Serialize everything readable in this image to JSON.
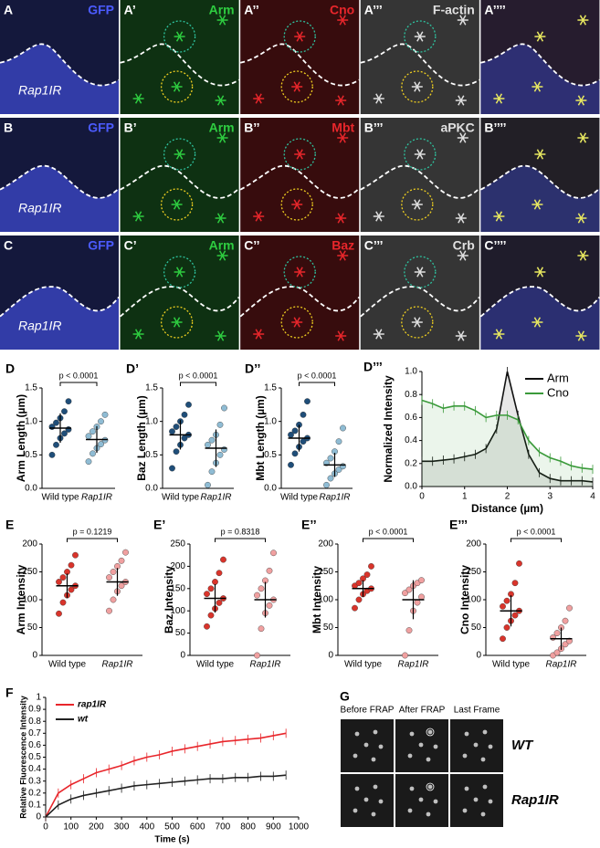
{
  "image_rows": [
    {
      "panels": [
        {
          "label": "A",
          "stain": "GFP",
          "color": "#4b5bff",
          "annotation": "Rap1IR"
        },
        {
          "label": "A’",
          "stain": "Arm",
          "color": "#2ecc40"
        },
        {
          "label": "A’’",
          "stain": "Cno",
          "color": "#e8262b"
        },
        {
          "label": "A’’’",
          "stain": "F-actin",
          "color": "#e0e0e0"
        },
        {
          "label": "A’’’’",
          "color": "#9a6cc0"
        }
      ]
    },
    {
      "panels": [
        {
          "label": "B",
          "stain": "GFP",
          "color": "#4b5bff",
          "annotation": "Rap1IR"
        },
        {
          "label": "B’",
          "stain": "Arm",
          "color": "#2ecc40"
        },
        {
          "label": "B’’",
          "stain": "Mbt",
          "color": "#e8262b"
        },
        {
          "label": "B’’’",
          "stain": "aPKC",
          "color": "#e0e0e0"
        },
        {
          "label": "B’’’’",
          "color": "#8a7c9a"
        }
      ]
    },
    {
      "panels": [
        {
          "label": "C",
          "stain": "GFP",
          "color": "#4b5bff",
          "annotation": "Rap1IR"
        },
        {
          "label": "C’",
          "stain": "Arm",
          "color": "#2ecc40"
        },
        {
          "label": "C’’",
          "stain": "Baz",
          "color": "#e8262b"
        },
        {
          "label": "C’’’",
          "stain": "Crb",
          "color": "#e0e0e0"
        },
        {
          "label": "C’’’’",
          "color": "#7a6cb0"
        }
      ]
    }
  ],
  "chart_data": [
    {
      "type": "dotplot",
      "panel": "D",
      "ylabel": "Arm Length (µm)",
      "categories": [
        "Wild type",
        "Rap1IR"
      ],
      "pvalue": "p < 0.0001",
      "ylim": [
        0,
        1.5
      ],
      "yticks": [
        {
          "value": 0,
          "label": "0.0"
        },
        0.5,
        {
          "value": 1,
          "label": "1.0"
        },
        1.5
      ],
      "groups": [
        {
          "color": "#1f4e79",
          "points": [
            0.5,
            0.65,
            0.75,
            0.82,
            0.88,
            0.92,
            0.98,
            1.05,
            1.15,
            1.3
          ],
          "mean": 0.9,
          "sd": 0.22
        },
        {
          "color": "#8fbcd4",
          "points": [
            0.4,
            0.52,
            0.6,
            0.66,
            0.72,
            0.78,
            0.85,
            0.92,
            1.0,
            1.1
          ],
          "mean": 0.73,
          "sd": 0.2
        }
      ]
    },
    {
      "type": "dotplot",
      "panel": "D’",
      "ylabel": "Baz Length (µm)",
      "categories": [
        "Wild type",
        "Rap1IR"
      ],
      "pvalue": "p < 0.0001",
      "ylim": [
        0,
        1.5
      ],
      "yticks": [
        {
          "value": 0,
          "label": "0.0"
        },
        0.5,
        {
          "value": 1,
          "label": "1.0"
        },
        1.5
      ],
      "groups": [
        {
          "color": "#1f4e79",
          "points": [
            0.3,
            0.55,
            0.65,
            0.75,
            0.8,
            0.85,
            0.92,
            1.0,
            1.1,
            1.25
          ],
          "mean": 0.8,
          "sd": 0.22
        },
        {
          "color": "#8fbcd4",
          "points": [
            0.05,
            0.25,
            0.38,
            0.5,
            0.58,
            0.65,
            0.72,
            0.8,
            0.95,
            1.2
          ],
          "mean": 0.6,
          "sd": 0.28
        }
      ]
    },
    {
      "type": "dotplot",
      "panel": "D’’",
      "ylabel": "Mbt Length (µm)",
      "categories": [
        "Wild type",
        "Rap1IR"
      ],
      "pvalue": "p < 0.0001",
      "ylim": [
        0,
        1.5
      ],
      "yticks": [
        {
          "value": 0,
          "label": "0.0"
        },
        0.5,
        {
          "value": 1,
          "label": "1.0"
        },
        1.5
      ],
      "groups": [
        {
          "color": "#1f4e79",
          "points": [
            0.35,
            0.52,
            0.62,
            0.7,
            0.75,
            0.8,
            0.86,
            0.95,
            1.1,
            1.3
          ],
          "mean": 0.75,
          "sd": 0.2
        },
        {
          "color": "#8fbcd4",
          "points": [
            0.05,
            0.15,
            0.22,
            0.28,
            0.33,
            0.38,
            0.45,
            0.55,
            0.7,
            0.9
          ],
          "mean": 0.35,
          "sd": 0.18
        }
      ]
    },
    {
      "type": "line",
      "panel": "D’’’",
      "ylabel": "Normalized Intensity",
      "xlabel": "Distance (µm)",
      "x": [
        0,
        0.25,
        0.5,
        0.75,
        1,
        1.25,
        1.5,
        1.75,
        2,
        2.25,
        2.5,
        2.75,
        3,
        3.25,
        3.5,
        3.75,
        4
      ],
      "xlim": [
        0,
        4
      ],
      "xticks": [
        0,
        1,
        2,
        3,
        4
      ],
      "ylim": [
        0,
        1
      ],
      "yticks": [
        {
          "value": 0,
          "label": "0.0"
        },
        0.2,
        0.4,
        0.6,
        0.8,
        {
          "value": 1,
          "label": "1.0"
        }
      ],
      "series": [
        {
          "name": "Arm",
          "color": "#111111",
          "values": [
            0.22,
            0.22,
            0.23,
            0.24,
            0.26,
            0.28,
            0.33,
            0.5,
            1.0,
            0.62,
            0.28,
            0.12,
            0.07,
            0.05,
            0.05,
            0.05,
            0.04
          ]
        },
        {
          "name": "Cno",
          "color": "#3a9a3a",
          "values": [
            0.75,
            0.72,
            0.68,
            0.7,
            0.7,
            0.66,
            0.6,
            0.62,
            0.62,
            0.58,
            0.4,
            0.3,
            0.25,
            0.22,
            0.18,
            0.16,
            0.15
          ]
        }
      ]
    },
    {
      "type": "dotplot",
      "panel": "E",
      "ylabel": "Arm Intensity",
      "categories": [
        "Wild type",
        "Rap1IR"
      ],
      "pvalue": "p = 0.1219",
      "ylim": [
        0,
        200
      ],
      "yticks": [
        0,
        50,
        100,
        150,
        200
      ],
      "groups": [
        {
          "color": "#d9342b",
          "points": [
            75,
            95,
            108,
            118,
            125,
            132,
            140,
            150,
            162,
            180
          ],
          "mean": 125,
          "sd": 22
        },
        {
          "color": "#f0a0a0",
          "points": [
            80,
            100,
            115,
            125,
            132,
            140,
            150,
            160,
            170,
            185
          ],
          "mean": 132,
          "sd": 25
        }
      ]
    },
    {
      "type": "dotplot",
      "panel": "E’",
      "ylabel": "Baz Intensity",
      "categories": [
        "Wild type",
        "Rap1IR"
      ],
      "pvalue": "p = 0.8318",
      "ylim": [
        0,
        250
      ],
      "yticks": [
        0,
        50,
        100,
        150,
        200,
        250
      ],
      "groups": [
        {
          "color": "#d9342b",
          "points": [
            65,
            90,
            105,
            118,
            128,
            138,
            150,
            165,
            185,
            215
          ],
          "mean": 128,
          "sd": 32
        },
        {
          "color": "#f0a0a0",
          "points": [
            0,
            60,
            95,
            112,
            125,
            135,
            150,
            168,
            190,
            230
          ],
          "mean": 125,
          "sd": 40
        }
      ]
    },
    {
      "type": "dotplot",
      "panel": "E’’",
      "ylabel": "Mbt Intensity",
      "categories": [
        "Wild type",
        "Rap1IR"
      ],
      "pvalue": "p < 0.0001",
      "ylim": [
        0,
        200
      ],
      "yticks": [
        0,
        50,
        100,
        150,
        200
      ],
      "groups": [
        {
          "color": "#d9342b",
          "points": [
            85,
            100,
            110,
            116,
            120,
            125,
            130,
            138,
            145,
            160
          ],
          "mean": 120,
          "sd": 15
        },
        {
          "color": "#f0a0a0",
          "points": [
            0,
            45,
            80,
            95,
            105,
            112,
            118,
            125,
            130,
            135
          ],
          "mean": 100,
          "sd": 35
        }
      ]
    },
    {
      "type": "dotplot",
      "panel": "E’’’",
      "ylabel": "Cno Intensity",
      "categories": [
        "Wild type",
        "Rap1IR"
      ],
      "pvalue": "p < 0.0001",
      "ylim": [
        0,
        200
      ],
      "yticks": [
        0,
        50,
        100,
        150,
        200
      ],
      "groups": [
        {
          "color": "#d9342b",
          "points": [
            30,
            50,
            62,
            72,
            80,
            88,
            98,
            110,
            130,
            165
          ],
          "mean": 80,
          "sd": 28
        },
        {
          "color": "#f0a0a0",
          "points": [
            0,
            5,
            12,
            20,
            26,
            32,
            40,
            50,
            62,
            85
          ],
          "mean": 30,
          "sd": 20
        }
      ]
    },
    {
      "type": "line",
      "panel": "F",
      "ylabel": "Relative Fluorescence Intensity",
      "xlabel": "Time (s)",
      "x": [
        0,
        50,
        100,
        150,
        200,
        250,
        300,
        350,
        400,
        450,
        500,
        550,
        600,
        650,
        700,
        750,
        800,
        850,
        900,
        950
      ],
      "xlim": [
        0,
        1000
      ],
      "xticks": [
        0,
        100,
        200,
        300,
        400,
        500,
        600,
        700,
        800,
        900,
        1000
      ],
      "ylim": [
        0,
        1
      ],
      "yticks": [
        0,
        0.1,
        0.2,
        0.3,
        0.4,
        0.5,
        0.6,
        0.7,
        0.8,
        0.9,
        1
      ],
      "series": [
        {
          "name": "rap1IR",
          "color": "#e8262b",
          "values": [
            0,
            0.2,
            0.27,
            0.32,
            0.37,
            0.4,
            0.43,
            0.47,
            0.5,
            0.52,
            0.55,
            0.57,
            0.59,
            0.61,
            0.63,
            0.64,
            0.65,
            0.66,
            0.68,
            0.7
          ]
        },
        {
          "name": "wt",
          "color": "#222222",
          "values": [
            0,
            0.1,
            0.15,
            0.18,
            0.2,
            0.22,
            0.24,
            0.26,
            0.27,
            0.28,
            0.29,
            0.3,
            0.31,
            0.32,
            0.32,
            0.33,
            0.33,
            0.34,
            0.34,
            0.35
          ]
        }
      ]
    }
  ],
  "frap_grid": {
    "label": "G",
    "columns": [
      "Before FRAP",
      "After FRAP",
      "Last Frame"
    ],
    "rows": [
      "WT",
      "Rap1IR"
    ]
  }
}
